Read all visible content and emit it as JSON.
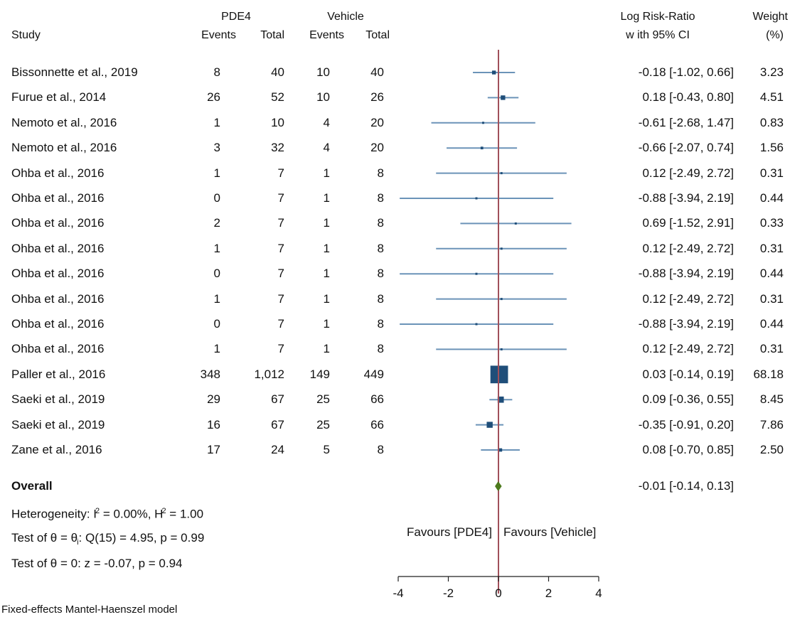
{
  "header": {
    "group_pde4": "PDE4",
    "group_vehicle": "Vehicle",
    "study": "Study",
    "events": "Events",
    "total": "Total",
    "effect_line1": "Log Risk-Ratio",
    "effect_line2": "w ith 95% CI",
    "weight_line1": "Weight",
    "weight_line2": "(%)"
  },
  "chart_data": {
    "type": "forest",
    "xlim": [
      -4,
      4
    ],
    "xticks": [
      -4,
      -2,
      0,
      2,
      4
    ],
    "xtick_labels": [
      "-4",
      "-2",
      "0",
      "2",
      "4"
    ],
    "colors": {
      "ci_line": "#6b93b8",
      "marker": "#1f4e79",
      "overall": "#4d7a1d",
      "null_line": "#a0505a"
    },
    "rows": [
      {
        "study": "Bissonnette et al., 2019",
        "e1": "8",
        "t1": "40",
        "e2": "10",
        "t2": "40",
        "est": -0.18,
        "lo": -1.02,
        "hi": 0.66,
        "label": "-0.18 [-1.02, 0.66]",
        "weight": "3.23",
        "w": 3.23
      },
      {
        "study": "Furue et al., 2014",
        "e1": "26",
        "t1": "52",
        "e2": "10",
        "t2": "26",
        "est": 0.18,
        "lo": -0.43,
        "hi": 0.8,
        "label": "0.18 [-0.43, 0.80]",
        "weight": "4.51",
        "w": 4.51
      },
      {
        "study": "Nemoto et al., 2016",
        "e1": "1",
        "t1": "10",
        "e2": "4",
        "t2": "20",
        "est": -0.61,
        "lo": -2.68,
        "hi": 1.47,
        "label": "-0.61 [-2.68, 1.47]",
        "weight": "0.83",
        "w": 0.83
      },
      {
        "study": "Nemoto et al., 2016",
        "e1": "3",
        "t1": "32",
        "e2": "4",
        "t2": "20",
        "est": -0.66,
        "lo": -2.07,
        "hi": 0.74,
        "label": "-0.66 [-2.07, 0.74]",
        "weight": "1.56",
        "w": 1.56
      },
      {
        "study": "Ohba et al., 2016",
        "e1": "1",
        "t1": "7",
        "e2": "1",
        "t2": "8",
        "est": 0.12,
        "lo": -2.49,
        "hi": 2.72,
        "label": "0.12 [-2.49, 2.72]",
        "weight": "0.31",
        "w": 0.31
      },
      {
        "study": "Ohba et al., 2016",
        "e1": "0",
        "t1": "7",
        "e2": "1",
        "t2": "8",
        "est": -0.88,
        "lo": -3.94,
        "hi": 2.19,
        "label": "-0.88 [-3.94, 2.19]",
        "weight": "0.44",
        "w": 0.44
      },
      {
        "study": "Ohba et al., 2016",
        "e1": "2",
        "t1": "7",
        "e2": "1",
        "t2": "8",
        "est": 0.69,
        "lo": -1.52,
        "hi": 2.91,
        "label": "0.69 [-1.52, 2.91]",
        "weight": "0.33",
        "w": 0.33
      },
      {
        "study": "Ohba et al., 2016",
        "e1": "1",
        "t1": "7",
        "e2": "1",
        "t2": "8",
        "est": 0.12,
        "lo": -2.49,
        "hi": 2.72,
        "label": "0.12 [-2.49, 2.72]",
        "weight": "0.31",
        "w": 0.31
      },
      {
        "study": "Ohba et al., 2016",
        "e1": "0",
        "t1": "7",
        "e2": "1",
        "t2": "8",
        "est": -0.88,
        "lo": -3.94,
        "hi": 2.19,
        "label": "-0.88 [-3.94, 2.19]",
        "weight": "0.44",
        "w": 0.44
      },
      {
        "study": "Ohba et al., 2016",
        "e1": "1",
        "t1": "7",
        "e2": "1",
        "t2": "8",
        "est": 0.12,
        "lo": -2.49,
        "hi": 2.72,
        "label": "0.12 [-2.49, 2.72]",
        "weight": "0.31",
        "w": 0.31
      },
      {
        "study": "Ohba et al., 2016",
        "e1": "0",
        "t1": "7",
        "e2": "1",
        "t2": "8",
        "est": -0.88,
        "lo": -3.94,
        "hi": 2.19,
        "label": "-0.88 [-3.94, 2.19]",
        "weight": "0.44",
        "w": 0.44
      },
      {
        "study": "Ohba et al., 2016",
        "e1": "1",
        "t1": "7",
        "e2": "1",
        "t2": "8",
        "est": 0.12,
        "lo": -2.49,
        "hi": 2.72,
        "label": "0.12 [-2.49, 2.72]",
        "weight": "0.31",
        "w": 0.31
      },
      {
        "study": "Paller et al., 2016",
        "e1": "348",
        "t1": "1,012",
        "e2": "149",
        "t2": "449",
        "est": 0.03,
        "lo": -0.14,
        "hi": 0.19,
        "label": "0.03 [-0.14, 0.19]",
        "weight": "68.18",
        "w": 68.18
      },
      {
        "study": "Saeki et al., 2019",
        "e1": "29",
        "t1": "67",
        "e2": "25",
        "t2": "66",
        "est": 0.09,
        "lo": -0.36,
        "hi": 0.55,
        "label": "0.09 [-0.36, 0.55]",
        "weight": "8.45",
        "w": 8.45
      },
      {
        "study": "Saeki et al., 2019",
        "e1": "16",
        "t1": "67",
        "e2": "25",
        "t2": "66",
        "est": -0.35,
        "lo": -0.91,
        "hi": 0.2,
        "label": "-0.35 [-0.91, 0.20]",
        "weight": "7.86",
        "w": 7.86
      },
      {
        "study": "Zane et al., 2016",
        "e1": "17",
        "t1": "24",
        "e2": "5",
        "t2": "8",
        "est": 0.08,
        "lo": -0.7,
        "hi": 0.85,
        "label": "0.08 [-0.70, 0.85]",
        "weight": "2.50",
        "w": 2.5
      }
    ],
    "overall": {
      "label_text": "Overall",
      "est": -0.01,
      "lo": -0.14,
      "hi": 0.13,
      "label": "-0.01 [-0.14, 0.13]"
    },
    "favours_left": "Favours [PDE4]",
    "favours_right": "Favours [Vehicle]"
  },
  "stats": {
    "heterogeneity_prefix": "Heterogeneity: I",
    "heterogeneity_i2_sup": "2",
    "heterogeneity_mid": " = 0.00%, H",
    "heterogeneity_h2_sup": "2",
    "heterogeneity_end": " = 1.00",
    "test1_prefix": "Test of θ = θ",
    "test1_sub": "i",
    "test1_end": ": Q(15) = 4.95, p = 0.99",
    "test2": "Test of θ = 0: z = -0.07, p = 0.94"
  },
  "footer": {
    "model": "Fixed-effects Mantel-Haenszel model"
  }
}
